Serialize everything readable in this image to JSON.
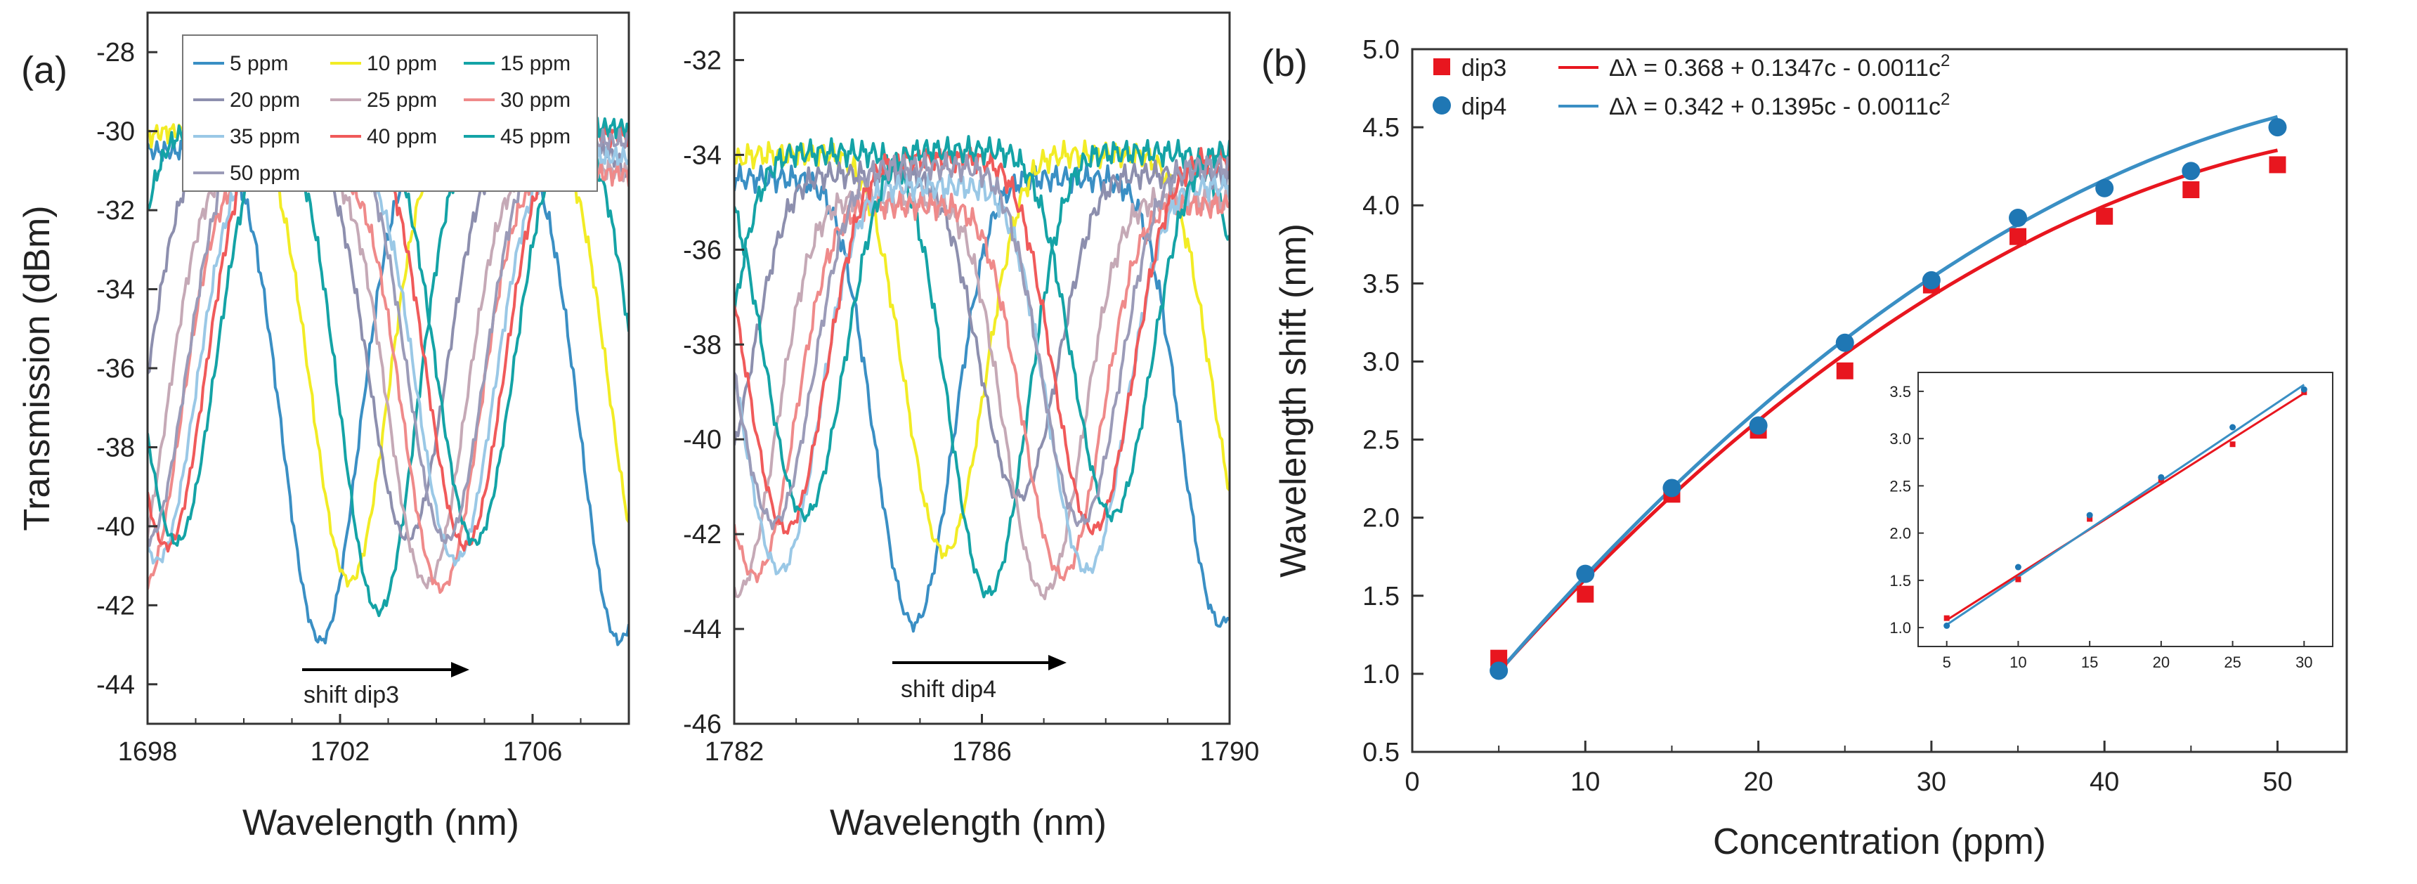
{
  "figure": {
    "label_a": "(a)",
    "label_b": "(b)"
  },
  "chart_data": [
    {
      "id": "dip3",
      "type": "line",
      "xlabel": "Wavelength (nm)",
      "ylabel": "Transmission (dBm)",
      "xlim": [
        1698,
        1708
      ],
      "ylim": [
        -45,
        -27
      ],
      "xticks": [
        "1698",
        "1702",
        "1706"
      ],
      "xtick_values": [
        1698,
        1702,
        1706
      ],
      "yticks": [
        "-28",
        "-30",
        "-32",
        "-34",
        "-36",
        "-38",
        "-40",
        "-42",
        "-44"
      ],
      "ytick_values": [
        -28,
        -30,
        -32,
        -34,
        -36,
        -38,
        -40,
        -42,
        -44
      ],
      "annotation": "shift dip3",
      "series": [
        {
          "name": "5 ppm",
          "color": "#3a8fc4",
          "center": 1701.6,
          "depth": -42.9
        },
        {
          "name": "10 ppm",
          "color": "#f2ec25",
          "center": 1702.2,
          "depth": -41.9
        },
        {
          "name": "15 ppm",
          "color": "#14a3a6",
          "center": 1702.8,
          "depth": -42.7
        },
        {
          "name": "20 ppm",
          "color": "#8d8fae",
          "center": 1703.4,
          "depth": -40.4
        },
        {
          "name": "25 ppm",
          "color": "#c5a9b6",
          "center": 1703.8,
          "depth": -41.0
        },
        {
          "name": "30 ppm",
          "color": "#ef8a8a",
          "center": 1704.1,
          "depth": -41.0
        },
        {
          "name": "35 ppm",
          "color": "#9ac8e6",
          "center": 1704.4,
          "depth": -40.7
        },
        {
          "name": "40 ppm",
          "color": "#f05a5a",
          "center": 1704.6,
          "depth": -40.9
        },
        {
          "name": "45 ppm",
          "color": "#14a3a6",
          "center": 1704.8,
          "depth": -41.0
        },
        {
          "name": "50 ppm",
          "color": "#9b9bb8",
          "center": 1704.2,
          "depth": -40.6
        }
      ]
    },
    {
      "id": "dip4",
      "type": "line",
      "xlabel": "Wavelength (nm)",
      "ylabel": "",
      "xlim": [
        1782,
        1790
      ],
      "ylim": [
        -46,
        -31
      ],
      "xticks": [
        "1782",
        "1786",
        "1790"
      ],
      "xtick_values": [
        1782,
        1786,
        1790
      ],
      "yticks": [
        "-32",
        "-34",
        "-36",
        "-38",
        "-40",
        "-42",
        "-44",
        "-46"
      ],
      "ytick_values": [
        -32,
        -34,
        -36,
        -38,
        -40,
        -42,
        -44,
        -46
      ],
      "annotation": "shift dip4",
      "series": [
        {
          "name": "5 ppm",
          "color": "#3a8fc4",
          "center": 1784.9,
          "depth": -43.9
        },
        {
          "name": "10 ppm",
          "color": "#f2ec25",
          "center": 1785.4,
          "depth": -42.9
        },
        {
          "name": "15 ppm",
          "color": "#14a3a6",
          "center": 1786.1,
          "depth": -43.8
        },
        {
          "name": "20 ppm",
          "color": "#8d8fae",
          "center": 1786.6,
          "depth": -41.3
        },
        {
          "name": "25 ppm",
          "color": "#c5a9b6",
          "center": 1787.0,
          "depth": -42.8
        },
        {
          "name": "30 ppm",
          "color": "#ef8a8a",
          "center": 1787.3,
          "depth": -42.3
        },
        {
          "name": "35 ppm",
          "color": "#9ac8e6",
          "center": 1787.7,
          "depth": -42.6
        },
        {
          "name": "40 ppm",
          "color": "#f05a5a",
          "center": 1787.8,
          "depth": -42.3
        },
        {
          "name": "45 ppm",
          "color": "#14a3a6",
          "center": 1788.1,
          "depth": -42.2
        },
        {
          "name": "50 ppm",
          "color": "#9b9bb8",
          "center": 1787.6,
          "depth": -42.0
        }
      ]
    },
    {
      "id": "shift",
      "type": "scatter",
      "xlabel": "Concentration (ppm)",
      "ylabel": "Wavelength shift (nm)",
      "xlim": [
        0,
        54
      ],
      "ylim": [
        0.5,
        5.0
      ],
      "xticks": [
        "0",
        "10",
        "20",
        "30",
        "40",
        "50"
      ],
      "xtick_values": [
        0,
        10,
        20,
        30,
        40,
        50
      ],
      "yticks": [
        "0.5",
        "1.0",
        "1.5",
        "2.0",
        "2.5",
        "3.0",
        "3.5",
        "4.0",
        "4.5",
        "5.0"
      ],
      "ytick_values": [
        0.5,
        1.0,
        1.5,
        2.0,
        2.5,
        3.0,
        3.5,
        4.0,
        4.5,
        5.0
      ],
      "series": [
        {
          "name": "dip3",
          "marker": "square",
          "color": "#e8161f",
          "x": [
            5,
            10,
            15,
            20,
            25,
            30,
            35,
            40,
            45,
            50
          ],
          "y": [
            1.1,
            1.51,
            2.15,
            2.56,
            2.94,
            3.49,
            3.8,
            3.93,
            4.1,
            4.26
          ],
          "fit_label_pre": "Δλ = 0.368 + 0.1347c - 0.0011c",
          "fit_sup": "2",
          "fit": [
            0.368,
            0.1347,
            -0.0011
          ],
          "fit_color": "#e8161f"
        },
        {
          "name": "dip4",
          "marker": "circle",
          "color": "#1f77b4",
          "x": [
            5,
            10,
            15,
            20,
            25,
            30,
            35,
            40,
            45,
            50
          ],
          "y": [
            1.02,
            1.64,
            2.19,
            2.59,
            3.12,
            3.52,
            3.92,
            4.11,
            4.22,
            4.5
          ],
          "fit_label_pre": "Δλ = 0.342 + 0.1395c - 0.0011c",
          "fit_sup": "2",
          "fit": [
            0.342,
            0.1395,
            -0.0011
          ],
          "fit_color": "#3a8fc4"
        }
      ],
      "inset": {
        "type": "scatter",
        "xlim": [
          3,
          32
        ],
        "ylim": [
          0.8,
          3.7
        ],
        "xticks": [
          "5",
          "10",
          "15",
          "20",
          "25",
          "30"
        ],
        "xtick_values": [
          5,
          10,
          15,
          20,
          25,
          30
        ],
        "yticks": [
          "1.0",
          "1.5",
          "2.0",
          "2.5",
          "3.0",
          "3.5"
        ],
        "ytick_values": [
          1.0,
          1.5,
          2.0,
          2.5,
          3.0,
          3.5
        ],
        "series": [
          {
            "name": "dip3",
            "color": "#e8161f",
            "x": [
              5,
              10,
              15,
              20,
              25,
              30
            ],
            "y": [
              1.1,
              1.51,
              2.15,
              2.56,
              2.94,
              3.49
            ],
            "line": [
              [
                5,
                1.08
              ],
              [
                30,
                3.48
              ]
            ]
          },
          {
            "name": "dip4",
            "color": "#1f77b4",
            "x": [
              5,
              10,
              15,
              20,
              25,
              30
            ],
            "y": [
              1.02,
              1.64,
              2.19,
              2.59,
              3.12,
              3.52
            ],
            "line": [
              [
                5,
                1.03
              ],
              [
                30,
                3.57
              ]
            ]
          }
        ]
      }
    }
  ]
}
